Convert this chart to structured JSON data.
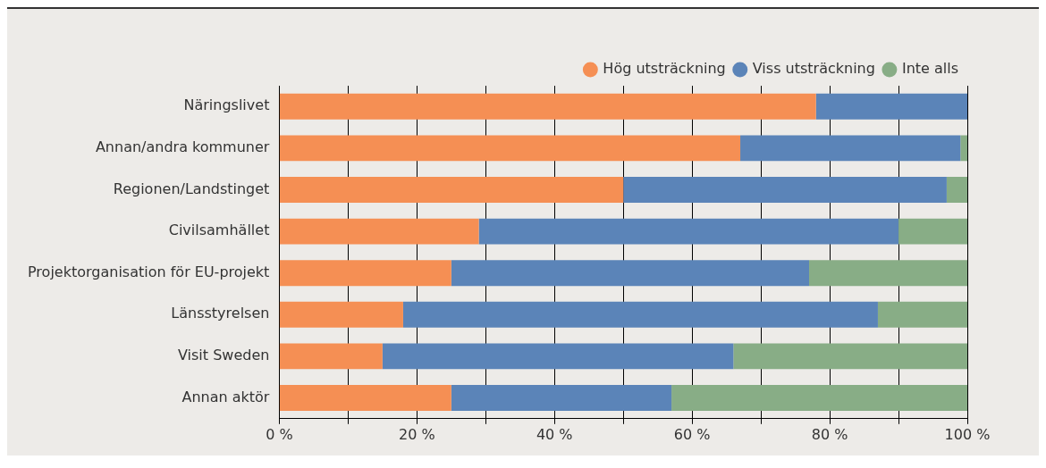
{
  "chart_data": {
    "type": "bar",
    "orientation": "horizontal",
    "stacked": true,
    "categories": [
      "Näringslivet",
      "Annan/andra kommuner",
      "Regionen/Landstinget",
      "Civilsamhället",
      "Projektorganisation för EU-projekt",
      "Länsstyrelsen",
      "Visit Sweden",
      "Annan aktör"
    ],
    "series": [
      {
        "name": "Hög utsträckning",
        "color": "#f58f54",
        "values": [
          78,
          67,
          50,
          29,
          25,
          18,
          15,
          25
        ]
      },
      {
        "name": "Viss utsträckning",
        "color": "#5b84b8",
        "values": [
          22,
          32,
          47,
          61,
          52,
          69,
          51,
          32
        ]
      },
      {
        "name": "Inte alls",
        "color": "#88ad86",
        "values": [
          0,
          1,
          3,
          10,
          23,
          13,
          34,
          43
        ]
      }
    ],
    "xlim": [
      0,
      100
    ],
    "xticks": [
      {
        "value": 0,
        "label": "0 %"
      },
      {
        "value": 10,
        "label": null
      },
      {
        "value": 20,
        "label": "20 %"
      },
      {
        "value": 30,
        "label": null
      },
      {
        "value": 40,
        "label": "40 %"
      },
      {
        "value": 50,
        "label": null
      },
      {
        "value": 60,
        "label": "60 %"
      },
      {
        "value": 70,
        "label": null
      },
      {
        "value": 80,
        "label": "80 %"
      },
      {
        "value": 90,
        "label": null
      },
      {
        "value": 100,
        "label": "100 %"
      }
    ],
    "grid": "x",
    "legend": "top right"
  }
}
